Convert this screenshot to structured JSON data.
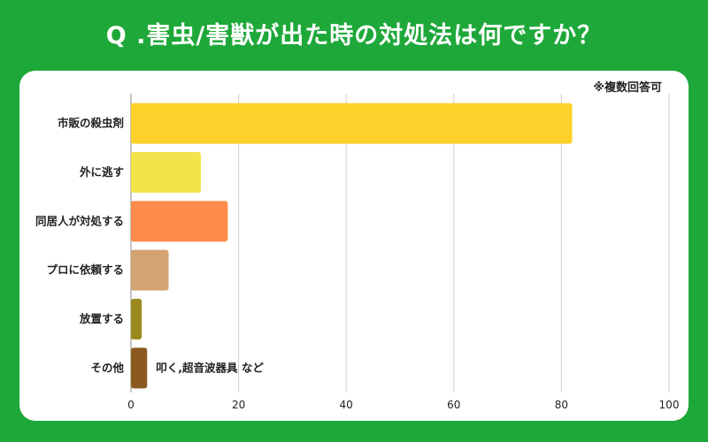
{
  "title": "Q .害虫/害獣が出た時の対処法は何ですか？",
  "note": "※複数回答可",
  "colors": {
    "background": "#1fa83a",
    "card": "#ffffff",
    "grid": "#cfcfcf"
  },
  "chart_data": {
    "type": "bar",
    "orientation": "horizontal",
    "title": "Q .害虫/害獣が出た時の対処法は何ですか？",
    "xlabel": "",
    "ylabel": "",
    "xlim": [
      0,
      100
    ],
    "xticks": [
      0,
      20,
      40,
      60,
      80,
      100
    ],
    "grid": true,
    "categories": [
      "市販の殺虫剤",
      "外に逃す",
      "同居人が対処する",
      "プロに依頼する",
      "放置する",
      "その他"
    ],
    "values": [
      82,
      13,
      18,
      7,
      2,
      3
    ],
    "bar_colors": [
      "#fcd12a",
      "#f2e34a",
      "#ff8c4a",
      "#d4a372",
      "#9a8a1e",
      "#8b5a1e"
    ],
    "annotations": [
      {
        "category": "その他",
        "text": "叩く,超音波器具 など"
      }
    ]
  }
}
